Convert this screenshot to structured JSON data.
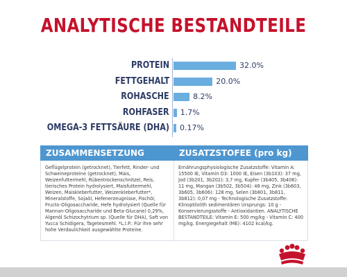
{
  "page": {
    "title": "ANALYTISCHE BESTANDTEILE"
  },
  "nutrients": {
    "max_value": 32.0,
    "items": [
      {
        "label": "PROTEIN",
        "value": 32.0,
        "value_label": "32.0%"
      },
      {
        "label": "FETTGEHALT",
        "value": 20.0,
        "value_label": "20.0%"
      },
      {
        "label": "ROHASCHE",
        "value": 8.2,
        "value_label": "8.2%"
      },
      {
        "label": "ROHFASER",
        "value": 1.7,
        "value_label": "1.7%"
      },
      {
        "label": "OMEGA-3 FETTSÄURE (DHA)",
        "value": 0.17,
        "value_label": "0.17%"
      }
    ]
  },
  "composition": {
    "header": "ZUSAMMENSETZUNG",
    "text": "Geflügelprotein (getrocknet), Tierfett, Rinder- und Schweineproteine (getrocknet), Mais, Weizenfuttermehl, Rübentrockenschnitzel, Reis, tierisches Protein hydrolysiert, Maisfuttermehl, Weizen, Maiskleberfutter, Weizenkleberfutter*, Mineralstoffe, Sojaöl, Hefenerzeugnisse, Fischöl, Fructo-Oligosaccharide, Hefe hydrolysiert (Quelle für Mannan-Oligosaccharide und Beta-Glucane) 0,29%, Algenöl Schizochytrium sp. (Quelle für DHA), Saft von Yucca Schidigera, Tagetesmehl. *L.I.P.: Für ihre sehr hohe Verdaulichkeit ausgewählte Proteine."
  },
  "additives": {
    "header": "ZUSATZSTOFEE (pro kg)",
    "text": "Ernährungsphysiologische Zusatzstoffe: Vitamin A: 15500 IE, Vitamin D3: 1000 IE, Eisen (3b103): 37 mg, Jod (3b201, 3b202): 3,7 mg, Kupfer (3b405, 3b406): 11 mg, Mangan (3b502, 3b504): 48 mg, Zink (3b603, 3b605, 3b606): 128 mg, Selen (3b801, 3b811, 3b812): 0,07 mg - Technologische Zusatzstoffe: Klinoptilolith sedimentären Ursprungs: 10 g - Konservierungsstoffe - Antioxidantien. ANALYTISCHE BESTANDTEILE: Vitamin E: 500 mg/kg - Vitamin C: 400 mg/kg. Energiegehalt (ME): 4102 kcal/kg."
  },
  "colors": {
    "title": "#c5122c",
    "bar": "#6aaee0",
    "header_bg": "#4e96d0",
    "label": "#2d3b64",
    "logo": "#c5122c"
  },
  "logo": {
    "icon": "crown-icon"
  }
}
